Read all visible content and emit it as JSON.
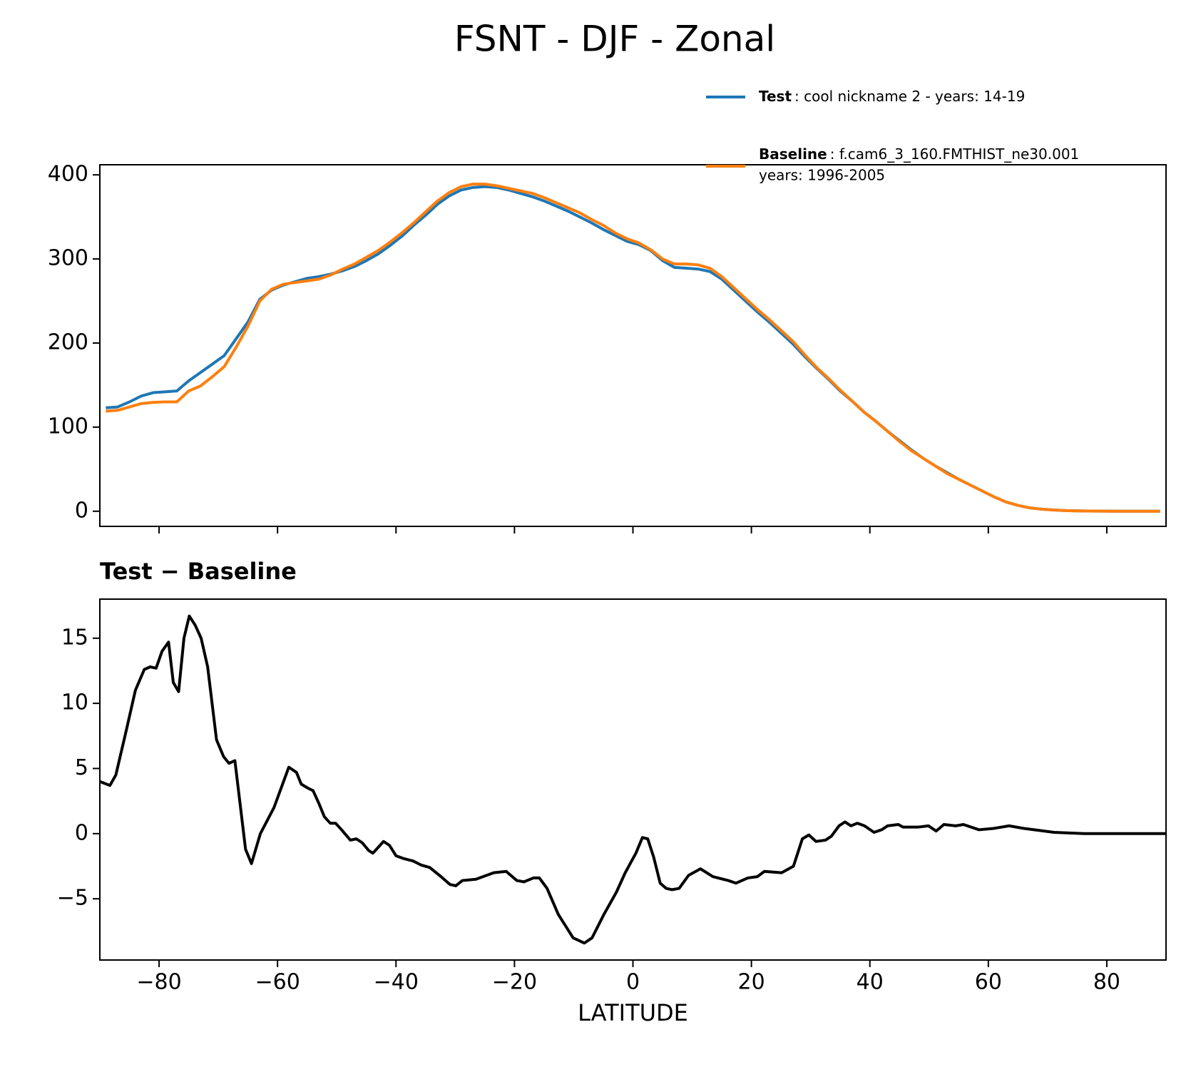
{
  "title": "FSNT - DJF - Zonal",
  "chart_data": [
    {
      "type": "line",
      "x": [
        -89,
        -87,
        -85,
        -83,
        -81,
        -79,
        -77,
        -75,
        -73,
        -71,
        -69,
        -67,
        -65,
        -63,
        -61,
        -59,
        -57,
        -55,
        -53,
        -51,
        -49,
        -47,
        -45,
        -43,
        -41,
        -39,
        -37,
        -35,
        -33,
        -31,
        -29,
        -27,
        -25,
        -23,
        -21,
        -19,
        -17,
        -15,
        -13,
        -11,
        -9,
        -7,
        -5,
        -3,
        -1,
        1,
        3,
        5,
        7,
        9,
        11,
        13,
        15,
        17,
        19,
        21,
        23,
        25,
        27,
        29,
        31,
        33,
        35,
        37,
        39,
        41,
        43,
        45,
        47,
        49,
        51,
        53,
        55,
        57,
        59,
        61,
        63,
        65,
        67,
        69,
        71,
        73,
        75,
        77,
        79,
        81,
        83,
        85,
        87,
        89
      ],
      "series": [
        {
          "name": "Test",
          "label_lines": [
            ": cool nickname 2 - years: 14-19"
          ],
          "color": "#1f77b4",
          "values": [
            123,
            124,
            130,
            137,
            141,
            142,
            143,
            155,
            165,
            175,
            185,
            205,
            225,
            252,
            263,
            269,
            273,
            277,
            279,
            282,
            286,
            291,
            298,
            306,
            316,
            327,
            340,
            352,
            365,
            375,
            382,
            385,
            386,
            385,
            382,
            378,
            374,
            369,
            363,
            357,
            350,
            343,
            335,
            328,
            321,
            317,
            310,
            298,
            290,
            289,
            288,
            285,
            276,
            263,
            250,
            237,
            225,
            212,
            199,
            184,
            170,
            157,
            143,
            131,
            118,
            107,
            95,
            84,
            73,
            63,
            54,
            46,
            38,
            31,
            24,
            17,
            11,
            7,
            4,
            2.5,
            1.5,
            0.8,
            0.4,
            0.2,
            0.1,
            0,
            0,
            0,
            0,
            0
          ]
        },
        {
          "name": "Baseline",
          "label_lines": [
            ": f.cam6_3_160.FMTHIST_ne30.001",
            "years: 1996-2005"
          ],
          "color": "#ff7f0e",
          "values": [
            119,
            120,
            124,
            128,
            129.5,
            130,
            130,
            143,
            149,
            160,
            172,
            195,
            220,
            250,
            264,
            270,
            272,
            274,
            276,
            281,
            288,
            294,
            302,
            310,
            320,
            331,
            343,
            356,
            369,
            379,
            386,
            389,
            389,
            387,
            384,
            381,
            378,
            373,
            367,
            361,
            355,
            347,
            340,
            331,
            324,
            319,
            311,
            300,
            294,
            294,
            293,
            289,
            279,
            266,
            253,
            240,
            228,
            215,
            202,
            186,
            171,
            158,
            144,
            131,
            118,
            107,
            95,
            83,
            72,
            63,
            54,
            45,
            38,
            31,
            24,
            17,
            11,
            7,
            4,
            2.4,
            1.5,
            0.8,
            0.4,
            0.2,
            0.1,
            0,
            0,
            0,
            0,
            0
          ]
        }
      ],
      "xlim": [
        -90,
        90
      ],
      "xticks": [
        -80,
        -60,
        -40,
        -20,
        0,
        20,
        40,
        60,
        80
      ],
      "ylim": [
        -18,
        412
      ],
      "yticks": [
        0,
        100,
        200,
        300,
        400
      ]
    },
    {
      "type": "line",
      "subtitle": "Test − Baseline",
      "xlabel": "LATITUDE",
      "x": [
        -90,
        -88.3,
        -87.3,
        -85.5,
        -84,
        -82.5,
        -81.5,
        -80.5,
        -79.5,
        -78.4,
        -77.6,
        -76.7,
        -75.8,
        -74.9,
        -73.9,
        -72.9,
        -71.8,
        -70.3,
        -69.1,
        -68.2,
        -67.2,
        -65.4,
        -64.4,
        -62.9,
        -60.6,
        -58.1,
        -56.8,
        -56,
        -54.9,
        -54,
        -53,
        -52.1,
        -51.1,
        -50.2,
        -49.2,
        -47.7,
        -46.7,
        -45.7,
        -44.6,
        -43.9,
        -42.1,
        -41.1,
        -40,
        -38.8,
        -37.1,
        -35.8,
        -34.3,
        -32.4,
        -30.9,
        -29.9,
        -28.8,
        -26.5,
        -24.7,
        -23.5,
        -21.4,
        -19.6,
        -18.4,
        -16.8,
        -15.8,
        -14.5,
        -12.6,
        -10.1,
        -8.2,
        -6.9,
        -4.9,
        -2.8,
        -1.3,
        0.5,
        1.6,
        2.5,
        3.5,
        4.6,
        5.6,
        6.6,
        7.8,
        9.4,
        11.4,
        13.5,
        16.1,
        17.4,
        19.4,
        21,
        22.2,
        25.1,
        27.1,
        28.6,
        29.7,
        30.9,
        32.5,
        33.5,
        34.8,
        35.8,
        36.8,
        37.9,
        39.1,
        40.7,
        42,
        43,
        44.8,
        45.6,
        48.1,
        49.9,
        51.2,
        52.5,
        54.5,
        55.8,
        58.4,
        60.9,
        63.5,
        66,
        71.1,
        76.2,
        90
      ],
      "series": [
        {
          "color": "#000000",
          "values": [
            4.0,
            3.7,
            4.5,
            8,
            11,
            12.6,
            12.8,
            12.7,
            14,
            14.7,
            11.6,
            10.9,
            15,
            16.7,
            16,
            15,
            12.8,
            7.2,
            5.9,
            5.4,
            5.6,
            -1.2,
            -2.3,
            0,
            2,
            5.1,
            4.7,
            3.8,
            3.5,
            3.3,
            2.3,
            1.3,
            0.8,
            0.8,
            0.3,
            -0.5,
            -0.4,
            -0.7,
            -1.3,
            -1.5,
            -0.6,
            -0.9,
            -1.7,
            -1.9,
            -2.1,
            -2.4,
            -2.6,
            -3.3,
            -3.9,
            -4.0,
            -3.6,
            -3.5,
            -3.2,
            -3.0,
            -2.9,
            -3.6,
            -3.7,
            -3.4,
            -3.4,
            -4.2,
            -6.2,
            -8.0,
            -8.4,
            -8.0,
            -6.2,
            -4.5,
            -3.0,
            -1.5,
            -0.3,
            -0.4,
            -1.8,
            -3.8,
            -4.2,
            -4.3,
            -4.2,
            -3.2,
            -2.7,
            -3.3,
            -3.6,
            -3.8,
            -3.4,
            -3.3,
            -2.9,
            -3.0,
            -2.5,
            -0.4,
            -0.1,
            -0.6,
            -0.5,
            -0.2,
            0.6,
            0.9,
            0.6,
            0.8,
            0.6,
            0.1,
            0.3,
            0.6,
            0.7,
            0.5,
            0.5,
            0.6,
            0.2,
            0.7,
            0.6,
            0.7,
            0.3,
            0.4,
            0.6,
            0.4,
            0.1,
            0,
            0
          ]
        }
      ],
      "xlim": [
        -90,
        90
      ],
      "xticks": [
        {
          "value": -80,
          "label": "−80"
        },
        {
          "value": -60,
          "label": "−60"
        },
        {
          "value": -40,
          "label": "−40"
        },
        {
          "value": -20,
          "label": "−20"
        },
        0,
        20,
        40,
        60,
        80
      ],
      "ylim": [
        -9.7,
        18
      ],
      "yticks": [
        {
          "value": -5,
          "label": "−5"
        },
        0,
        5,
        10,
        15
      ]
    }
  ]
}
